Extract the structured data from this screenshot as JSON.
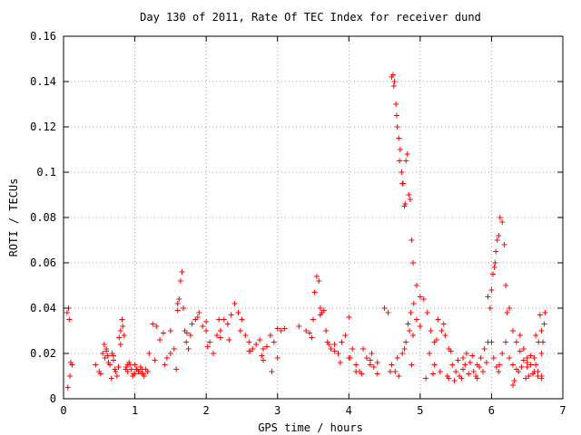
{
  "chart_data": {
    "type": "scatter",
    "title": "Day 130 of 2011, Rate Of TEC Index for receiver dund",
    "xlabel": "GPS time / hours",
    "ylabel": "ROTI / TECUs",
    "xlim": [
      0,
      7
    ],
    "ylim": [
      0,
      0.16
    ],
    "xticks": [
      "0",
      "1",
      "2",
      "3",
      "4",
      "5",
      "6",
      "7"
    ],
    "yticks": [
      "0",
      "0.02",
      "0.04",
      "0.06",
      "0.08",
      "0.1",
      "0.12",
      "0.14",
      "0.16"
    ],
    "grid": true,
    "marker": "plus",
    "color": "#ff0000",
    "series": [
      {
        "x": [
          0.05,
          0.07,
          0.08,
          0.1,
          0.12,
          0.06,
          0.09,
          0.45,
          0.5,
          0.55,
          0.58,
          0.6,
          0.62,
          0.65,
          0.68,
          0.7,
          0.72,
          0.75,
          0.78,
          0.8,
          0.82,
          0.85,
          0.88,
          0.9,
          0.93,
          0.95,
          0.98,
          1.0,
          1.03,
          1.05,
          1.08,
          1.1,
          1.13,
          1.15,
          1.18,
          0.52,
          0.57,
          0.63,
          0.67,
          0.73,
          0.77,
          0.83,
          0.87,
          0.92,
          0.97,
          1.02,
          1.07,
          1.12,
          1.2,
          1.25,
          1.3,
          1.35,
          1.4,
          1.45,
          1.5,
          1.55,
          1.6,
          1.62,
          1.64,
          1.66,
          1.68,
          1.7,
          1.72,
          1.75,
          1.78,
          1.8,
          1.85,
          1.9,
          1.95,
          2.0,
          2.05,
          2.1,
          2.15,
          2.2,
          2.25,
          2.3,
          2.35,
          2.4,
          2.45,
          2.5,
          2.55,
          2.6,
          2.65,
          2.7,
          2.75,
          2.8,
          2.85,
          2.9,
          2.95,
          3.0,
          3.05,
          3.1,
          1.28,
          1.42,
          1.58,
          1.73,
          1.88,
          2.02,
          2.18,
          2.32,
          2.48,
          2.62,
          2.78,
          2.92,
          3.3,
          3.4,
          3.45,
          3.5,
          3.52,
          3.55,
          3.58,
          3.6,
          3.62,
          3.65,
          3.68,
          3.7,
          3.75,
          3.8,
          3.85,
          3.9,
          3.95,
          4.0,
          4.05,
          4.1,
          4.15,
          4.2,
          4.25,
          4.3,
          4.35,
          4.4,
          3.48,
          3.72,
          3.88,
          4.02,
          4.18,
          4.32,
          4.5,
          4.55,
          4.6,
          4.62,
          4.64,
          4.66,
          4.68,
          4.7,
          4.72,
          4.74,
          4.76,
          4.78,
          4.8,
          4.82,
          4.84,
          4.86,
          4.88,
          4.9,
          4.95,
          5.0,
          4.63,
          4.67,
          4.71,
          4.75,
          4.79,
          4.83,
          4.87,
          4.91,
          4.6,
          4.65,
          4.7,
          4.75,
          4.8,
          4.85,
          4.9,
          4.95,
          5.0,
          4.58,
          4.68,
          4.78,
          4.88,
          5.05,
          5.1,
          5.15,
          5.2,
          5.25,
          5.3,
          5.35,
          5.4,
          5.45,
          5.5,
          5.55,
          5.6,
          5.65,
          5.7,
          5.75,
          5.8,
          5.85,
          5.9,
          5.95,
          5.08,
          5.18,
          5.28,
          5.38,
          5.48,
          5.58,
          5.68,
          5.78,
          5.88,
          5.13,
          5.23,
          5.33,
          5.43,
          5.53,
          5.63,
          5.73,
          5.83,
          5.93,
          5.95,
          5.98,
          6.0,
          6.02,
          6.04,
          6.05,
          6.06,
          6.08,
          6.1,
          6.12,
          6.15,
          6.18,
          6.2,
          6.22,
          6.25,
          6.0,
          6.03,
          6.07,
          6.11,
          6.15,
          6.2,
          6.25,
          6.3,
          6.3,
          6.35,
          6.4,
          6.45,
          6.5,
          6.55,
          6.6,
          6.65,
          6.7,
          6.72,
          6.75,
          6.32,
          6.38,
          6.42,
          6.48,
          6.52,
          6.58,
          6.62,
          6.68,
          6.35,
          6.45,
          6.55,
          6.65,
          6.7,
          6.4,
          6.5,
          6.6,
          6.7,
          6.62,
          6.66,
          6.74,
          0.6,
          0.7,
          0.8,
          0.9,
          1.0,
          1.1,
          1.5,
          1.6,
          2.0,
          2.2,
          2.6,
          2.8,
          3.0,
          3.6,
          3.8,
          4.0,
          4.1,
          4.3,
          4.4,
          5.2,
          5.4,
          5.6,
          5.8,
          6.1,
          6.3,
          6.5,
          6.7
        ],
        "y": [
          0.038,
          0.04,
          0.035,
          0.016,
          0.015,
          0.005,
          0.01,
          0.015,
          0.012,
          0.02,
          0.018,
          0.022,
          0.019,
          0.015,
          0.02,
          0.017,
          0.013,
          0.01,
          0.027,
          0.03,
          0.035,
          0.028,
          0.014,
          0.012,
          0.015,
          0.013,
          0.011,
          0.015,
          0.013,
          0.012,
          0.014,
          0.011,
          0.01,
          0.013,
          0.012,
          0.011,
          0.024,
          0.016,
          0.009,
          0.012,
          0.014,
          0.032,
          0.013,
          0.016,
          0.01,
          0.013,
          0.012,
          0.011,
          0.02,
          0.033,
          0.032,
          0.026,
          0.029,
          0.018,
          0.02,
          0.022,
          0.039,
          0.044,
          0.052,
          0.056,
          0.04,
          0.03,
          0.025,
          0.022,
          0.028,
          0.033,
          0.035,
          0.038,
          0.032,
          0.03,
          0.025,
          0.02,
          0.028,
          0.03,
          0.035,
          0.033,
          0.037,
          0.042,
          0.038,
          0.035,
          0.028,
          0.025,
          0.022,
          0.024,
          0.026,
          0.022,
          0.023,
          0.028,
          0.025,
          0.018,
          0.03,
          0.031,
          0.017,
          0.015,
          0.013,
          0.029,
          0.036,
          0.023,
          0.035,
          0.026,
          0.03,
          0.021,
          0.019,
          0.012,
          0.032,
          0.03,
          0.029,
          0.035,
          0.047,
          0.054,
          0.052,
          0.04,
          0.038,
          0.039,
          0.03,
          0.025,
          0.022,
          0.021,
          0.02,
          0.025,
          0.028,
          0.036,
          0.022,
          0.015,
          0.012,
          0.022,
          0.018,
          0.015,
          0.014,
          0.016,
          0.027,
          0.024,
          0.016,
          0.018,
          0.011,
          0.02,
          0.04,
          0.038,
          0.142,
          0.143,
          0.14,
          0.13,
          0.12,
          0.115,
          0.11,
          0.1,
          0.095,
          0.085,
          0.105,
          0.108,
          0.09,
          0.088,
          0.07,
          0.06,
          0.05,
          0.045,
          0.138,
          0.125,
          0.105,
          0.095,
          0.086,
          0.033,
          0.038,
          0.042,
          0.015,
          0.012,
          0.01,
          0.02,
          0.025,
          0.03,
          0.028,
          0.035,
          0.032,
          0.012,
          0.018,
          0.022,
          0.015,
          0.044,
          0.038,
          0.03,
          0.025,
          0.035,
          0.03,
          0.028,
          0.022,
          0.015,
          0.012,
          0.01,
          0.018,
          0.02,
          0.016,
          0.012,
          0.015,
          0.018,
          0.022,
          0.025,
          0.009,
          0.011,
          0.012,
          0.01,
          0.008,
          0.009,
          0.011,
          0.01,
          0.012,
          0.02,
          0.026,
          0.033,
          0.021,
          0.017,
          0.015,
          0.019,
          0.014,
          0.016,
          0.045,
          0.04,
          0.048,
          0.055,
          0.058,
          0.06,
          0.065,
          0.07,
          0.072,
          0.08,
          0.078,
          0.068,
          0.05,
          0.038,
          0.04,
          0.025,
          0.018,
          0.014,
          0.015,
          0.02,
          0.025,
          0.018,
          0.015,
          0.03,
          0.025,
          0.028,
          0.022,
          0.018,
          0.015,
          0.012,
          0.01,
          0.02,
          0.025,
          0.038,
          0.008,
          0.012,
          0.014,
          0.009,
          0.01,
          0.011,
          0.015,
          0.037,
          0.013,
          0.017,
          0.019,
          0.012,
          0.03,
          0.021,
          0.016,
          0.018,
          0.01,
          0.028,
          0.025,
          0.033,
          0.021,
          0.019,
          0.024,
          0.015,
          0.011,
          0.013,
          0.03,
          0.042,
          0.034,
          0.027,
          0.021,
          0.017,
          0.031,
          0.037,
          0.024,
          0.018,
          0.012,
          0.017,
          0.011,
          0.015,
          0.009,
          0.013,
          0.009,
          0.012,
          0.006,
          0.014,
          0.009
        ]
      }
    ]
  }
}
